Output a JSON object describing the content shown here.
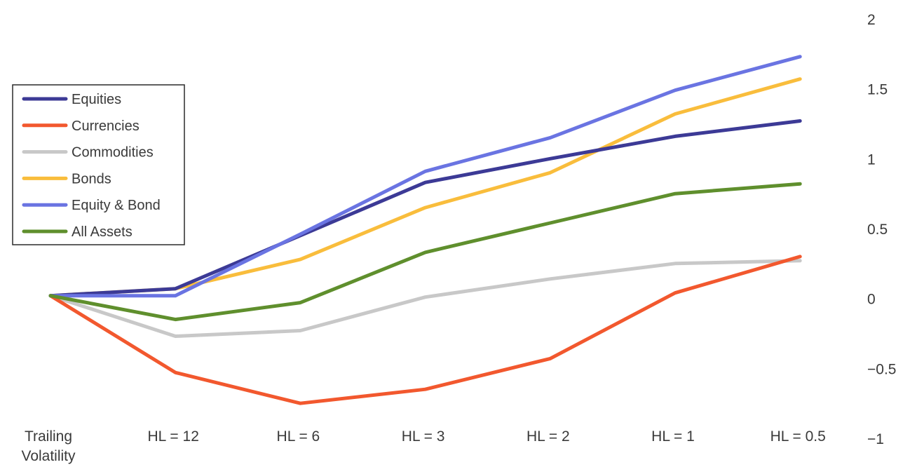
{
  "chart_data": {
    "type": "line",
    "title": "",
    "xlabel": "",
    "ylabel": "",
    "categories": [
      "Trailing Volatility",
      "HL = 12",
      "HL = 6",
      "HL = 3",
      "HL = 2",
      "HL = 1",
      "HL = 0.5"
    ],
    "ylim": [
      -1,
      2
    ],
    "yticks": [
      2,
      1.5,
      1,
      0.5,
      0,
      -0.5,
      -1
    ],
    "ytick_labels": [
      "2",
      "1.5",
      "1",
      "0.5",
      "0",
      "−0.5",
      "−1"
    ],
    "y_axis_side": "right",
    "grid": false,
    "legend": {
      "placement": "top-left",
      "boxed": true
    },
    "series": [
      {
        "name": "Equities",
        "color": "#3c3a96",
        "values": [
          0.02,
          0.07,
          0.45,
          0.83,
          1.0,
          1.16,
          1.27
        ]
      },
      {
        "name": "Currencies",
        "color": "#f2582e",
        "values": [
          0.02,
          -0.53,
          -0.75,
          -0.65,
          -0.43,
          0.04,
          0.3
        ]
      },
      {
        "name": "Commodities",
        "color": "#c8c8c8",
        "values": [
          0.02,
          -0.27,
          -0.23,
          0.01,
          0.14,
          0.25,
          0.27
        ]
      },
      {
        "name": "Bonds",
        "color": "#f9bd3c",
        "values": [
          0.02,
          0.07,
          0.28,
          0.65,
          0.9,
          1.32,
          1.57
        ]
      },
      {
        "name": "Equity & Bond",
        "color": "#6a74e2",
        "values": [
          0.02,
          0.02,
          0.46,
          0.91,
          1.15,
          1.49,
          1.73
        ]
      },
      {
        "name": "All Assets",
        "color": "#5f8f2d",
        "values": [
          0.02,
          -0.15,
          -0.03,
          0.33,
          0.54,
          0.75,
          0.82
        ]
      }
    ]
  }
}
